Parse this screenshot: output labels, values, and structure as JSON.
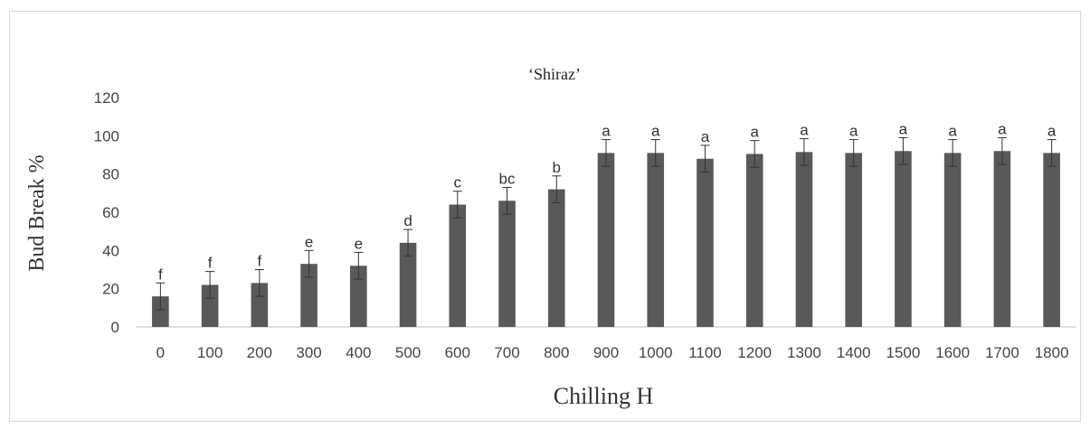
{
  "chart_data": {
    "type": "bar",
    "title": "‘Shiraz’",
    "xlabel": "Chilling H",
    "ylabel": "Bud Break %",
    "ylim": [
      0,
      120
    ],
    "yticks": [
      0,
      20,
      40,
      60,
      80,
      100,
      120
    ],
    "grid": false,
    "legend": "none",
    "bar_color": "#595959",
    "categories": [
      "0",
      "100",
      "200",
      "300",
      "400",
      "500",
      "600",
      "700",
      "800",
      "900",
      "1000",
      "1100",
      "1200",
      "1300",
      "1400",
      "1500",
      "1600",
      "1700",
      "1800"
    ],
    "values": [
      16,
      22,
      23,
      33,
      32,
      44,
      64,
      66,
      72,
      91,
      91,
      88,
      90.5,
      91.5,
      91,
      92,
      91,
      92,
      91
    ],
    "errors": [
      7,
      7,
      7,
      7,
      7,
      7,
      7,
      7,
      7,
      7,
      7,
      7,
      7,
      7,
      7,
      7,
      7,
      7,
      7
    ],
    "significance_letters": [
      "f",
      "f",
      "f",
      "e",
      "e",
      "d",
      "c",
      "bc",
      "b",
      "a",
      "a",
      "a",
      "a",
      "a",
      "a",
      "a",
      "a",
      "a",
      "a"
    ]
  }
}
